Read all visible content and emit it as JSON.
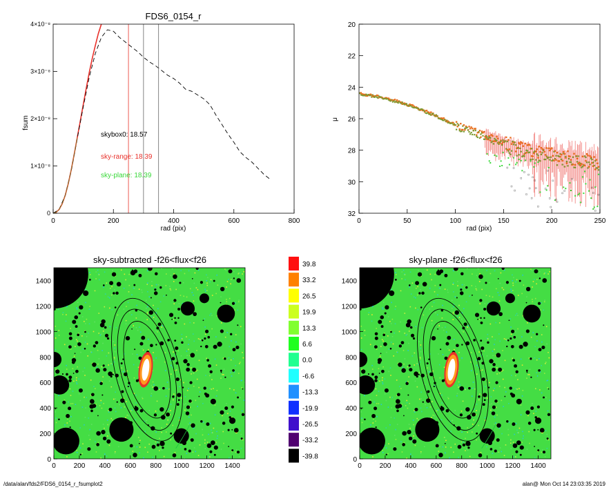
{
  "chart_data": [
    {
      "type": "line",
      "title": "FDS6_0154_r",
      "xlabel": "rad (pix)",
      "ylabel": "fsum",
      "xlim": [
        0,
        800
      ],
      "ylim": [
        0,
        4e-08
      ],
      "x_ticks": [
        "0",
        "200",
        "400",
        "600",
        "800"
      ],
      "y_ticks": [
        "0",
        "1×10⁻⁸",
        "2×10⁻⁸",
        "3×10⁻⁸",
        "4×10⁻⁸"
      ],
      "vertical_lines": [
        {
          "x": 250,
          "color": "#e8302a"
        },
        {
          "x": 300,
          "color": "#666666"
        },
        {
          "x": 350,
          "color": "#666666"
        }
      ],
      "annotations": [
        {
          "text": "skybox0: 18.57",
          "color": "#000000"
        },
        {
          "text": "sky-range: 18.39",
          "color": "#e8302a"
        },
        {
          "text": "sky-plane: 18.39",
          "color": "#38d838"
        }
      ],
      "series": [
        {
          "style": "solid",
          "color": "#e8302a",
          "x": [
            0,
            10,
            20,
            30,
            40,
            50,
            60,
            70,
            80,
            90,
            100,
            110,
            120,
            130,
            140,
            150,
            160
          ],
          "y": [
            0,
            2e-10,
            8e-10,
            2e-09,
            3.8e-09,
            6.2e-09,
            9.2e-09,
            1.25e-08,
            1.6e-08,
            1.95e-08,
            2.3e-08,
            2.65e-08,
            2.98e-08,
            3.28e-08,
            3.55e-08,
            3.8e-08,
            4e-08
          ]
        },
        {
          "style": "dashed",
          "color": "#000000",
          "x": [
            0,
            20,
            40,
            60,
            80,
            100,
            120,
            140,
            160,
            180,
            200,
            220,
            240,
            260,
            280,
            300,
            320,
            340,
            360,
            380,
            400,
            420,
            440,
            460,
            480,
            500,
            520,
            540,
            560,
            580,
            600,
            620,
            640,
            660,
            680,
            700,
            720
          ],
          "y": [
            0,
            8e-10,
            3.8e-09,
            9e-09,
            1.58e-08,
            2.25e-08,
            2.88e-08,
            3.38e-08,
            3.72e-08,
            3.88e-08,
            3.85e-08,
            3.72e-08,
            3.62e-08,
            3.52e-08,
            3.42e-08,
            3.3e-08,
            3.2e-08,
            3.12e-08,
            3.02e-08,
            2.92e-08,
            2.85e-08,
            2.75e-08,
            2.62e-08,
            2.58e-08,
            2.5e-08,
            2.42e-08,
            2.3e-08,
            2.08e-08,
            1.88e-08,
            1.68e-08,
            1.5e-08,
            1.3e-08,
            1.18e-08,
            1.08e-08,
            9.5e-09,
            8.2e-09,
            7.2e-09
          ]
        }
      ]
    },
    {
      "type": "scatter",
      "xlabel": "rad (pix)",
      "ylabel": "μ",
      "xlim": [
        0,
        250
      ],
      "ylim": [
        32,
        20
      ],
      "x_ticks": [
        "0",
        "50",
        "100",
        "150",
        "200",
        "250"
      ],
      "y_ticks": [
        "20",
        "22",
        "24",
        "26",
        "28",
        "30",
        "32"
      ],
      "trend": {
        "x": [
          0,
          20,
          40,
          60,
          80,
          100,
          120,
          140,
          160,
          180,
          200,
          220,
          240,
          250
        ],
        "y": [
          24.4,
          24.6,
          24.9,
          25.3,
          25.8,
          26.4,
          26.8,
          27.3,
          27.7,
          28.0,
          28.3,
          28.5,
          28.7,
          28.9
        ]
      },
      "series": [
        {
          "name": "",
          "color": "#e87020"
        },
        {
          "name": "",
          "color": "#7a9a30"
        },
        {
          "name": "",
          "color": "#38d838"
        }
      ]
    },
    {
      "type": "heatmap",
      "title": "sky-subtracted -f26<flux<f26",
      "xlim": [
        0,
        1500
      ],
      "ylim": [
        0,
        1500
      ],
      "x_ticks": [
        "0",
        "200",
        "400",
        "600",
        "800",
        "1000",
        "1200",
        "1400"
      ],
      "y_ticks": [
        "0",
        "200",
        "400",
        "600",
        "800",
        "1000",
        "1200",
        "1400"
      ]
    },
    {
      "type": "heatmap",
      "title": "sky-plane -f26<flux<f26",
      "xlim": [
        0,
        1500
      ],
      "ylim": [
        0,
        1500
      ],
      "x_ticks": [
        "0",
        "200",
        "400",
        "600",
        "800",
        "1000",
        "1200",
        "1400"
      ],
      "y_ticks": [
        "0",
        "200",
        "400",
        "600",
        "800",
        "1000",
        "1200",
        "1400"
      ]
    }
  ],
  "colorbar": {
    "levels": [
      {
        "label": "39.8",
        "color": "#ff1010"
      },
      {
        "label": "33.2",
        "color": "#ff8000"
      },
      {
        "label": "26.5",
        "color": "#ffff00"
      },
      {
        "label": "19.9",
        "color": "#ccff20"
      },
      {
        "label": "13.3",
        "color": "#80ff30"
      },
      {
        "label": "6.6",
        "color": "#20ff20"
      },
      {
        "label": "0.0",
        "color": "#20ff90"
      },
      {
        "label": "-6.6",
        "color": "#20ffff"
      },
      {
        "label": "-13.3",
        "color": "#2090ff"
      },
      {
        "label": "-19.9",
        "color": "#1030ff"
      },
      {
        "label": "-26.5",
        "color": "#4010cc"
      },
      {
        "label": "-33.2",
        "color": "#500070"
      },
      {
        "label": "-39.8",
        "color": "#000000"
      }
    ]
  },
  "footer": {
    "path": "/data/alan/fds2/FDS6_0154_r_fsumplot2",
    "stamp": "alan@  Mon Oct 14 23:03:35 2019"
  },
  "map_background_color": "#44dd44"
}
